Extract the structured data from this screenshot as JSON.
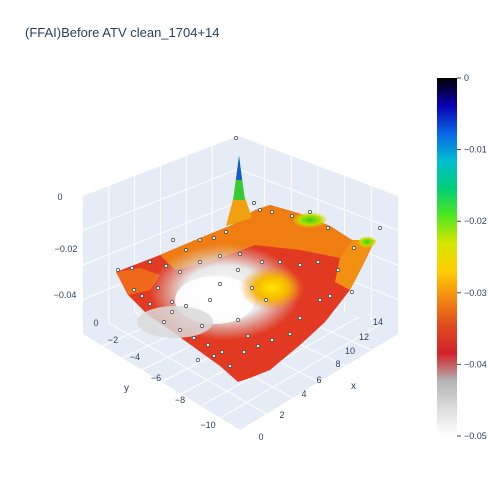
{
  "chart_data": {
    "type": "surface3d",
    "title": "(FFAI)Before ATV clean_1704+14",
    "xlabel": "x",
    "ylabel": "y",
    "zlabel": "",
    "x_ticks": [
      "0",
      "2",
      "4",
      "6",
      "8",
      "10",
      "12",
      "14"
    ],
    "y_ticks": [
      "0",
      "−2",
      "−4",
      "−6",
      "−8",
      "−10"
    ],
    "z_ticks": [
      "0",
      "−0.02",
      "−0.04"
    ],
    "xlim": [
      0,
      15
    ],
    "ylim": [
      -11,
      0
    ],
    "zlim": [
      -0.05,
      0
    ],
    "colorbar": {
      "ticks": [
        "0",
        "−0.01",
        "−0.02",
        "−0.03",
        "−0.04",
        "−0.05"
      ],
      "range": [
        -0.05,
        0
      ],
      "colors": [
        "#ffffff",
        "#dcdcdc",
        "#b4b4b4",
        "#d3222a",
        "#e04a1e",
        "#f28a10",
        "#ffce00",
        "#d6e600",
        "#50e61e",
        "#00ce78",
        "#00bed2",
        "#0a64e6",
        "#0a00b4",
        "#000000"
      ]
    },
    "surface_samples": [
      {
        "x": 0,
        "y": -11,
        "z": -0.04
      },
      {
        "x": 0,
        "y": -6,
        "z": -0.045
      },
      {
        "x": 0,
        "y": 0,
        "z": -0.038
      },
      {
        "x": 4,
        "y": -4,
        "z": -0.05
      },
      {
        "x": 8,
        "y": -6,
        "z": -0.048
      },
      {
        "x": 10,
        "y": -2,
        "z": -0.028
      },
      {
        "x": 14,
        "y": 0,
        "z": -0.028
      },
      {
        "x": 15,
        "y": -11,
        "z": -0.03
      },
      {
        "x": 15,
        "y": 0,
        "z": 0
      }
    ],
    "grid_visible": true,
    "colorbar_position": "right"
  }
}
